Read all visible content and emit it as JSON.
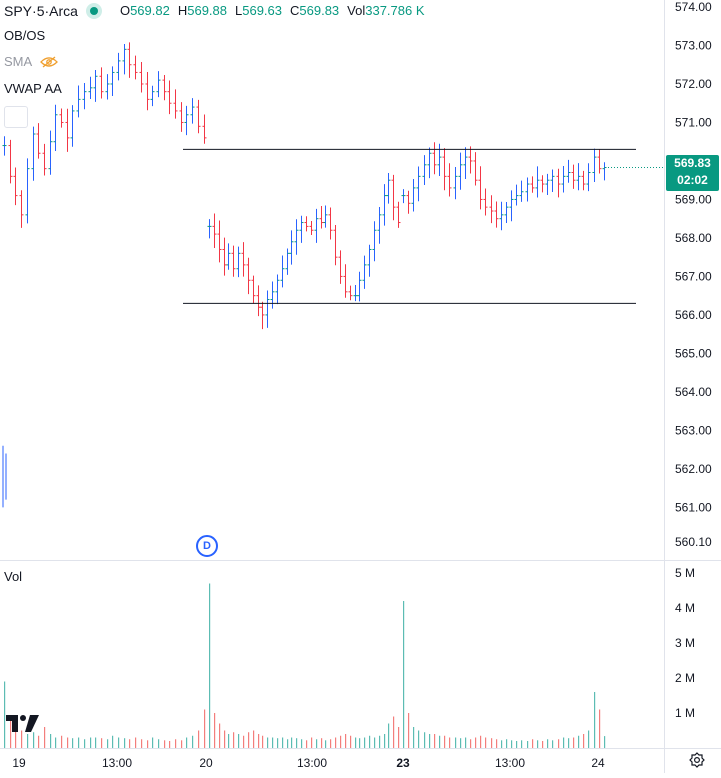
{
  "legend": {
    "symbol": "SPY",
    "interval": "5",
    "exchange": "Arca",
    "separator": " · ",
    "o_label": "O",
    "o_value": "569.82",
    "h_label": "H",
    "h_value": "569.88",
    "l_label": "L",
    "l_value": "569.63",
    "c_label": "C",
    "c_value": "569.83",
    "vol_label": "Vol",
    "vol_value": "337.786 K"
  },
  "indicators": {
    "obos": "OB/OS",
    "sma": "SMA",
    "vwap": "VWAP AA"
  },
  "price_tag": {
    "price": "569.83",
    "countdown": "02:02"
  },
  "volume_pane": {
    "label": "Vol"
  },
  "dividend_marker": {
    "letter": "D"
  },
  "colors": {
    "up": "#089981",
    "up_body": "#2962ff",
    "down": "#f23645",
    "vol_up": "#26a69a",
    "vol_down": "#ef5350",
    "grid": "#e0e3eb",
    "text": "#131722"
  },
  "chart_data": {
    "type": "ohlc",
    "y_axis": {
      "ticks": [
        "574.00",
        "573.00",
        "572.00",
        "571.00",
        "570.00",
        "569.00",
        "568.00",
        "567.00",
        "566.00",
        "565.00",
        "564.00",
        "563.00",
        "562.00",
        "561.00",
        "560.10"
      ],
      "range": [
        560.1,
        574.0
      ]
    },
    "volume_axis": {
      "ticks": [
        "5 M",
        "4 M",
        "3 M",
        "2 M",
        "1 M"
      ],
      "range": [
        0,
        5
      ]
    },
    "x_axis": {
      "ticks": [
        {
          "label": "19",
          "bold": false,
          "x": 0.0
        },
        {
          "label": "13:00",
          "bold": false,
          "x": 0.185
        },
        {
          "label": "20",
          "bold": false,
          "x": 0.34
        },
        {
          "label": "13:00",
          "bold": false,
          "x": 0.525
        },
        {
          "label": "23",
          "bold": true,
          "x": 0.68
        },
        {
          "label": "13:00",
          "bold": false,
          "x": 0.865
        },
        {
          "label": "24",
          "bold": false,
          "x": 1.02
        }
      ]
    },
    "horizontal_lines": [
      {
        "price": 570.3,
        "from_session": 1
      },
      {
        "price": 566.3,
        "from_session": 1
      }
    ],
    "sessions": [
      {
        "name": "19",
        "open": 570.4,
        "path": [
          570.4,
          569.6,
          569.1,
          568.6,
          569.8,
          570.7,
          570.2,
          569.8,
          570.5,
          571.2,
          571.0,
          570.6,
          571.3,
          571.6,
          571.8,
          571.9,
          572.2,
          571.8,
          572.0,
          572.3,
          572.6,
          572.9,
          572.5,
          572.3,
          572.0,
          571.6,
          571.8,
          572.1,
          571.8,
          571.5,
          571.3,
          571.0,
          571.2,
          571.4,
          570.9,
          570.6
        ],
        "volume": [
          1.9,
          0.9,
          0.6,
          0.5,
          0.4,
          0.45,
          0.35,
          0.6,
          0.4,
          0.3,
          0.35,
          0.3,
          0.28,
          0.3,
          0.25,
          0.3,
          0.3,
          0.28,
          0.25,
          0.35,
          0.3,
          0.28,
          0.25,
          0.3,
          0.25,
          0.22,
          0.3,
          0.25,
          0.22,
          0.2,
          0.25,
          0.22,
          0.3,
          0.35,
          0.5,
          1.1
        ]
      },
      {
        "name": "20",
        "open": 568.3,
        "path": [
          568.3,
          568.1,
          567.7,
          567.3,
          567.6,
          567.2,
          567.6,
          567.3,
          566.9,
          566.5,
          566.2,
          566.0,
          566.4,
          566.6,
          566.9,
          567.2,
          567.6,
          567.9,
          568.2,
          568.4,
          568.3,
          568.2,
          568.5,
          568.4,
          568.6,
          568.2,
          567.5,
          567.0,
          566.6,
          566.5,
          566.5,
          566.9,
          567.3,
          567.7,
          568.2,
          568.6,
          569.1,
          569.5,
          568.8,
          568.4
        ],
        "volume": [
          4.7,
          1.0,
          0.7,
          0.5,
          0.4,
          0.45,
          0.4,
          0.35,
          0.45,
          0.5,
          0.4,
          0.35,
          0.3,
          0.3,
          0.28,
          0.3,
          0.25,
          0.3,
          0.28,
          0.25,
          0.22,
          0.3,
          0.25,
          0.28,
          0.22,
          0.25,
          0.3,
          0.35,
          0.4,
          0.35,
          0.3,
          0.28,
          0.3,
          0.35,
          0.3,
          0.35,
          0.4,
          0.7,
          0.9,
          0.6
        ]
      },
      {
        "name": "23",
        "open": 569.1,
        "path": [
          569.1,
          568.9,
          569.3,
          569.6,
          569.9,
          570.2,
          569.9,
          570.1,
          569.6,
          569.3,
          569.6,
          569.9,
          570.1,
          570.0,
          569.5,
          569.0,
          568.8,
          568.7,
          568.5,
          568.6,
          568.8,
          569.0,
          569.1,
          569.2,
          569.4,
          569.3,
          569.5,
          569.4,
          569.5,
          569.6,
          569.4,
          569.6,
          569.7,
          569.5,
          569.6,
          569.4,
          569.7,
          570.1,
          569.8,
          569.83
        ],
        "volume": [
          4.2,
          1.0,
          0.6,
          0.5,
          0.45,
          0.4,
          0.4,
          0.35,
          0.35,
          0.3,
          0.3,
          0.28,
          0.3,
          0.25,
          0.3,
          0.35,
          0.3,
          0.28,
          0.25,
          0.22,
          0.25,
          0.22,
          0.2,
          0.22,
          0.2,
          0.25,
          0.22,
          0.2,
          0.25,
          0.22,
          0.25,
          0.3,
          0.28,
          0.3,
          0.35,
          0.4,
          0.5,
          1.6,
          1.1,
          0.34
        ]
      }
    ]
  }
}
